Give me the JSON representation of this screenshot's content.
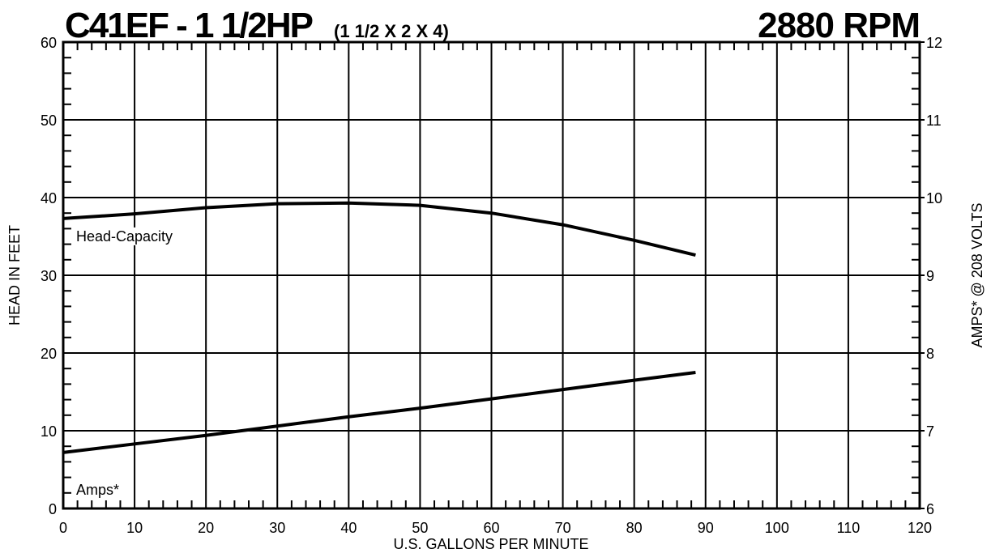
{
  "chart_data": {
    "type": "line",
    "title": "C41EF - 1 1/2HP",
    "subtitle": "(1 1/2 X 2 X 4)",
    "speed": "2880 RPM",
    "x_label": "U.S. GALLONS PER MINUTE",
    "y_label": "HEAD IN FEET",
    "y2_label": "AMPS* @ 208 VOLTS",
    "xlim": [
      0,
      120
    ],
    "xticks": [
      0,
      10,
      20,
      30,
      40,
      50,
      60,
      70,
      80,
      90,
      100,
      110,
      120
    ],
    "ylim": [
      0,
      60
    ],
    "yticks": [
      0,
      10,
      20,
      30,
      40,
      50,
      60
    ],
    "y2lim": [
      6,
      12
    ],
    "y2ticks": [
      6,
      7,
      8,
      9,
      10,
      11,
      12
    ],
    "grid": true,
    "series": [
      {
        "name": "Head-Capacity",
        "color": "#000000",
        "x": [
          0,
          10,
          20,
          30,
          40,
          50,
          60,
          70,
          80,
          88.6
        ],
        "values": [
          37.3,
          37.9,
          38.7,
          39.2,
          39.3,
          39.0,
          38.0,
          36.5,
          34.5,
          32.6
        ]
      },
      {
        "name": "Amps*",
        "color": "#000000",
        "axis": "y2",
        "x": [
          0,
          10,
          20,
          30,
          40,
          50,
          60,
          70,
          80,
          88.6
        ],
        "values": [
          6.72,
          6.83,
          6.94,
          7.06,
          7.18,
          7.29,
          7.41,
          7.53,
          7.65,
          7.75
        ]
      }
    ]
  }
}
